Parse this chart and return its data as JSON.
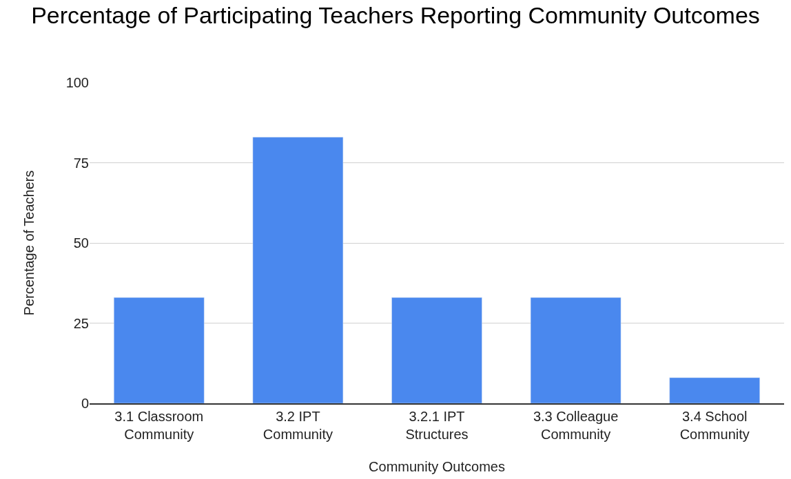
{
  "chart_data": {
    "type": "bar",
    "title": "Percentage of Participating Teachers Reporting Community Outcomes",
    "xlabel": "Community Outcomes",
    "ylabel": "Percentage of Teachers",
    "categories": [
      "3.1 Classroom Community",
      "3.2 IPT Community",
      "3.2.1 IPT Structures",
      "3.3 Colleague Community",
      "3.4 School Community"
    ],
    "values": [
      33,
      83,
      33,
      33,
      8
    ],
    "color": "#4a88ee",
    "ylim": [
      0,
      100
    ],
    "yticks": [
      0,
      25,
      50,
      75,
      100
    ],
    "grid": "y",
    "legend": false
  }
}
